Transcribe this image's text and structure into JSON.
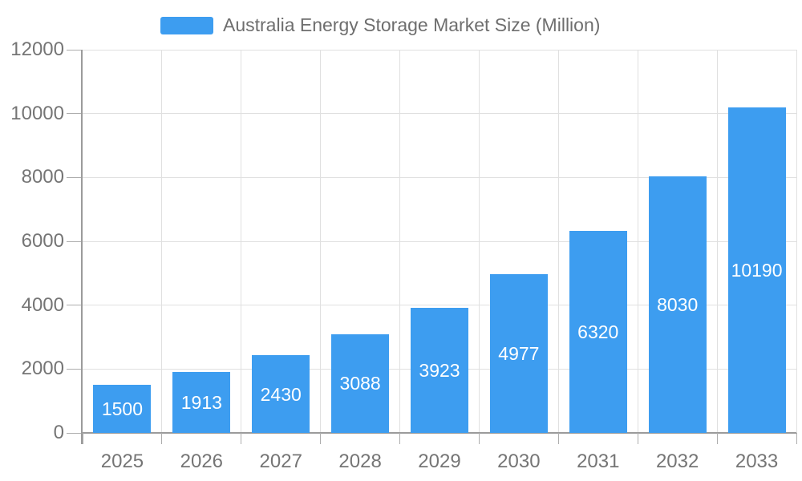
{
  "chart_data": {
    "type": "bar",
    "title": "Australia Energy Storage Market Size (Million)",
    "categories": [
      "2025",
      "2026",
      "2027",
      "2028",
      "2029",
      "2030",
      "2031",
      "2032",
      "2033"
    ],
    "values": [
      1500,
      1913,
      2430,
      3088,
      3923,
      4977,
      6320,
      8030,
      10190
    ],
    "value_labels": [
      "1500",
      "1913",
      "2430",
      "3088",
      "3923",
      "4977",
      "6320",
      "8030",
      "10190"
    ],
    "xlabel": "",
    "ylabel": "",
    "ylim": [
      0,
      12000
    ],
    "ytick_step": 2000,
    "ytick_labels": [
      "0",
      "2000",
      "4000",
      "6000",
      "8000",
      "10000",
      "12000"
    ],
    "grid": "on",
    "legend_position": "top-center",
    "value_label_position": "inside-center",
    "colors": {
      "bar": "#3D9DF0",
      "axis_line": "#9B9B9B",
      "grid_line": "#E0E0E0",
      "tick_text": "#757575",
      "legend_text": "#6E6E6E",
      "value_text": "#FFFFFF"
    }
  }
}
